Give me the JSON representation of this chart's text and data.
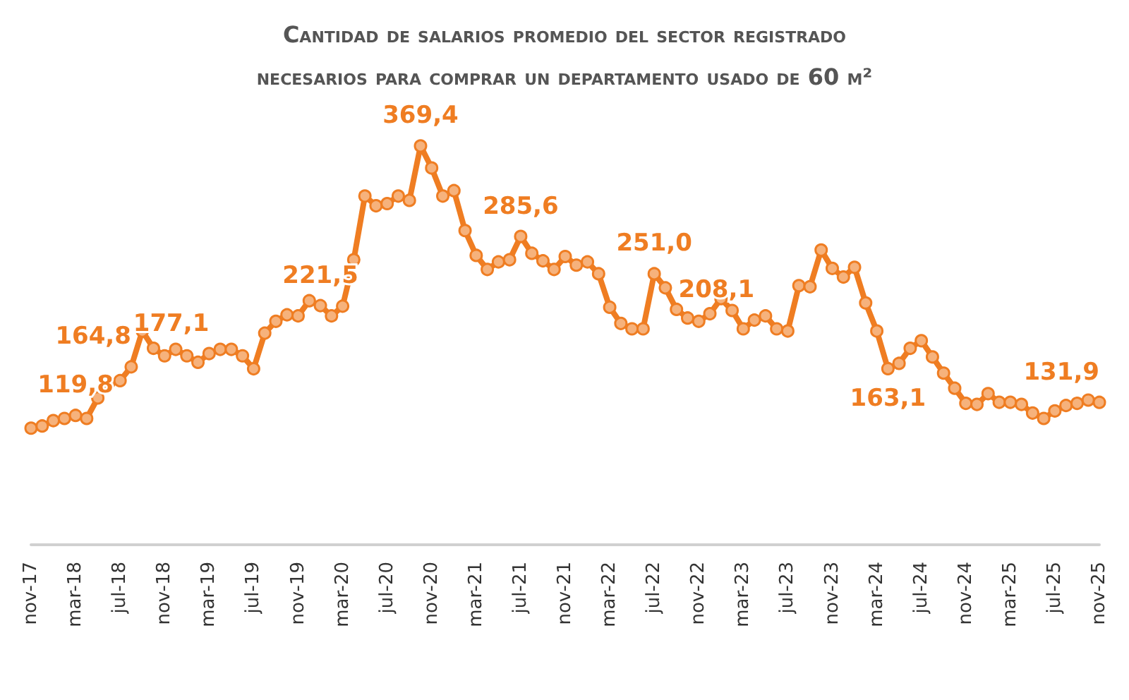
{
  "chart_data": {
    "type": "line",
    "title": "Cantidad de salarios promedio del sector registrado",
    "subtitle": "necesarios para comprar un departamento usado de 60 m²",
    "categories": [
      "nov-17",
      null,
      null,
      null,
      "mar-18",
      null,
      null,
      null,
      "jul-18",
      null,
      null,
      null,
      "nov-18",
      null,
      null,
      null,
      "mar-19",
      null,
      null,
      null,
      "jul-19",
      null,
      null,
      null,
      "nov-19",
      null,
      null,
      null,
      "mar-20",
      null,
      null,
      null,
      "jul-20",
      null,
      null,
      null,
      "nov-20",
      null,
      null,
      null,
      "mar-21",
      null,
      null,
      null,
      "jul-21",
      null,
      null,
      null,
      "nov-21",
      null,
      null,
      null,
      "mar-22",
      null,
      null,
      null,
      "jul-22",
      null,
      null,
      null,
      "nov-22",
      null,
      null,
      null,
      "mar-23",
      null,
      null,
      null,
      "jul-23",
      null,
      null,
      null,
      "nov-23",
      null,
      null,
      null,
      "mar-24",
      null,
      null,
      null,
      "jul-24",
      null,
      null,
      null,
      "nov-24",
      null,
      null,
      null,
      "mar-25",
      null,
      null,
      null,
      "jul-25",
      null,
      null,
      null,
      "nov-25"
    ],
    "series": [
      {
        "color": "#ef7d22",
        "values": [
          108,
          110,
          115,
          117,
          119.8,
          117,
          136,
          150,
          152,
          164.8,
          198,
          182,
          175,
          181,
          175,
          169,
          177.1,
          181,
          181,
          175,
          163,
          196,
          207,
          213,
          212,
          226,
          221.5,
          212,
          221,
          264,
          323,
          314,
          316,
          323,
          319,
          369.4,
          349,
          323,
          328,
          291,
          268,
          255,
          262,
          264,
          285.6,
          270,
          263,
          255,
          267,
          259,
          262,
          251,
          220,
          205,
          200,
          200,
          251.0,
          238,
          218,
          210,
          207,
          214,
          228,
          217,
          200,
          208.1,
          212,
          200,
          198,
          240,
          239,
          273,
          256,
          248,
          257,
          224,
          198,
          163.1,
          168,
          182,
          189,
          174,
          159,
          145,
          131,
          130,
          140,
          132,
          132,
          130,
          122,
          117,
          124,
          129,
          131,
          134,
          131.9
        ],
        "value_labels": [
          null,
          null,
          null,
          null,
          "119,8",
          null,
          null,
          null,
          null,
          "164,8",
          null,
          null,
          null,
          null,
          null,
          null,
          "177,1",
          null,
          null,
          null,
          null,
          null,
          null,
          null,
          null,
          null,
          "221,5",
          null,
          null,
          null,
          null,
          null,
          null,
          null,
          null,
          "369,4",
          null,
          null,
          null,
          null,
          null,
          null,
          null,
          null,
          "285,6",
          null,
          null,
          null,
          null,
          null,
          null,
          null,
          null,
          null,
          null,
          null,
          "251,0",
          null,
          null,
          null,
          null,
          null,
          null,
          null,
          null,
          "208,1",
          null,
          null,
          null,
          null,
          null,
          null,
          null,
          null,
          null,
          null,
          null,
          "163,1",
          null,
          null,
          null,
          null,
          null,
          null,
          null,
          null,
          null,
          null,
          null,
          null,
          null,
          null,
          null,
          null,
          null,
          null,
          "131,9"
        ]
      }
    ],
    "marker": "circle",
    "line_style": "solid",
    "grid": false,
    "tick_labels": "x"
  }
}
